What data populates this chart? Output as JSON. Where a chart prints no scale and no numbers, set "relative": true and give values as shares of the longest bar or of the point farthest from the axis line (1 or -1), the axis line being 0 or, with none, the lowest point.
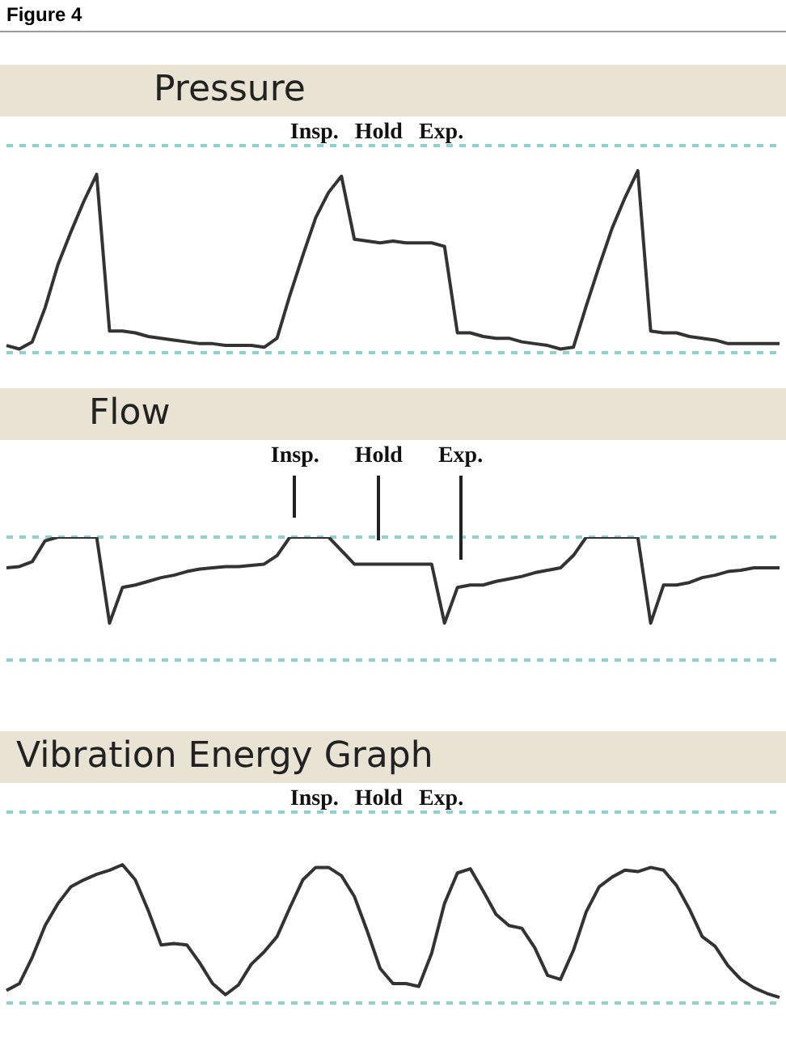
{
  "chart_data": [
    {
      "type": "line",
      "subtitle": "Figure 4",
      "title": "Pressure",
      "relative": true,
      "categories": [
        null,
        null,
        null,
        null,
        null,
        null,
        null,
        null,
        null,
        null,
        null,
        null,
        null,
        null,
        null,
        null,
        null,
        null,
        null,
        null,
        null,
        null,
        null,
        null,
        null,
        null,
        null,
        null,
        null,
        null,
        null,
        null,
        null,
        null,
        null,
        null,
        null,
        null,
        null,
        null,
        null,
        null,
        null,
        null,
        null,
        null,
        null,
        null,
        null,
        null,
        null,
        null,
        null,
        null,
        null,
        null,
        null,
        null,
        null,
        null,
        null
      ],
      "series": [
        {
          "color": "#333333",
          "values": [
            0.03,
            0.01,
            0.05,
            0.24,
            0.48,
            0.66,
            0.83,
            0.98,
            0.11,
            0.11,
            0.1,
            0.08,
            0.07,
            0.06,
            0.05,
            0.04,
            0.04,
            0.03,
            0.03,
            0.03,
            0.02,
            0.07,
            0.31,
            0.53,
            0.74,
            0.88,
            0.97,
            0.62,
            0.61,
            0.6,
            0.61,
            0.6,
            0.6,
            0.6,
            0.58,
            0.1,
            0.1,
            0.08,
            0.07,
            0.07,
            0.05,
            0.04,
            0.03,
            0.01,
            0.02,
            0.25,
            0.47,
            0.68,
            0.85,
            1.0,
            0.11,
            0.1,
            0.1,
            0.08,
            0.07,
            0.06,
            0.04,
            0.04,
            0.04,
            0.04,
            0.04
          ]
        }
      ],
      "ref_lines": [
        {
          "axis": "y",
          "value": 1.14,
          "color": "#8fd0d0",
          "line_style": "dashed"
        },
        {
          "axis": "y",
          "value": -0.01,
          "color": "#8fd0d0",
          "line_style": "dashed"
        }
      ],
      "annotations": [
        "Insp.",
        "Hold",
        "Exp."
      ]
    },
    {
      "type": "line",
      "title": "Flow",
      "relative": true,
      "categories": [
        null,
        null,
        null,
        null,
        null,
        null,
        null,
        null,
        null,
        null,
        null,
        null,
        null,
        null,
        null,
        null,
        null,
        null,
        null,
        null,
        null,
        null,
        null,
        null,
        null,
        null,
        null,
        null,
        null,
        null,
        null,
        null,
        null,
        null,
        null,
        null,
        null,
        null,
        null,
        null,
        null,
        null,
        null,
        null,
        null,
        null,
        null,
        null,
        null,
        null,
        null,
        null,
        null,
        null,
        null,
        null,
        null,
        null,
        null,
        null,
        null
      ],
      "series": [
        {
          "color": "#333333",
          "values": [
            0.75,
            0.76,
            0.8,
            0.97,
            1,
            1,
            1,
            1,
            0.3,
            0.59,
            0.61,
            0.64,
            0.67,
            0.69,
            0.72,
            0.74,
            0.75,
            0.76,
            0.76,
            0.77,
            0.78,
            0.85,
            1,
            1,
            1,
            1,
            0.89,
            0.78,
            0.78,
            0.78,
            0.78,
            0.78,
            0.78,
            0.78,
            0.3,
            0.59,
            0.61,
            0.61,
            0.64,
            0.66,
            0.68,
            0.71,
            0.73,
            0.75,
            0.85,
            1,
            1,
            1,
            1,
            1,
            0.3,
            0.61,
            0.61,
            0.63,
            0.67,
            0.69,
            0.72,
            0.73,
            0.75,
            0.75,
            0.75
          ]
        }
      ],
      "ref_lines": [
        {
          "axis": "y",
          "value": 1.0,
          "color": "#8fd0d0",
          "line_style": "dashed"
        },
        {
          "axis": "y",
          "value": 0,
          "color": "#8fd0d0",
          "line_style": "dashed"
        }
      ],
      "annotations": [
        "Insp.",
        "Hold",
        "Exp."
      ]
    },
    {
      "type": "line",
      "title": "Vibration Energy Graph",
      "relative": true,
      "categories": [
        null,
        null,
        null,
        null,
        null,
        null,
        null,
        null,
        null,
        null,
        null,
        null,
        null,
        null,
        null,
        null,
        null,
        null,
        null,
        null,
        null,
        null,
        null,
        null,
        null,
        null,
        null,
        null,
        null,
        null,
        null,
        null,
        null,
        null,
        null,
        null,
        null,
        null,
        null,
        null,
        null,
        null,
        null,
        null,
        null,
        null,
        null,
        null,
        null,
        null,
        null,
        null,
        null,
        null,
        null,
        null,
        null,
        null,
        null,
        null,
        null
      ],
      "series": [
        {
          "color": "#333333",
          "values": [
            0.09,
            0.14,
            0.33,
            0.56,
            0.72,
            0.84,
            0.89,
            0.93,
            0.96,
            1.0,
            0.89,
            0.67,
            0.42,
            0.43,
            0.42,
            0.29,
            0.14,
            0.06,
            0.13,
            0.28,
            0.37,
            0.48,
            0.69,
            0.89,
            0.98,
            0.98,
            0.92,
            0.77,
            0.52,
            0.25,
            0.14,
            0.14,
            0.12,
            0.36,
            0.72,
            0.94,
            0.97,
            0.81,
            0.64,
            0.56,
            0.54,
            0.4,
            0.2,
            0.17,
            0.38,
            0.66,
            0.84,
            0.91,
            0.96,
            0.95,
            0.98,
            0.96,
            0.85,
            0.68,
            0.48,
            0.41,
            0.27,
            0.17,
            0.11,
            0.07,
            0.04
          ]
        }
      ],
      "ref_lines": [
        {
          "axis": "y",
          "value": 1.38,
          "color": "#8fd0d0",
          "line_style": "dashed"
        },
        {
          "axis": "y",
          "value": 0,
          "color": "#8fd0d0",
          "line_style": "dashed"
        }
      ],
      "annotations": [
        "Insp.",
        "Hold",
        "Exp."
      ]
    }
  ]
}
